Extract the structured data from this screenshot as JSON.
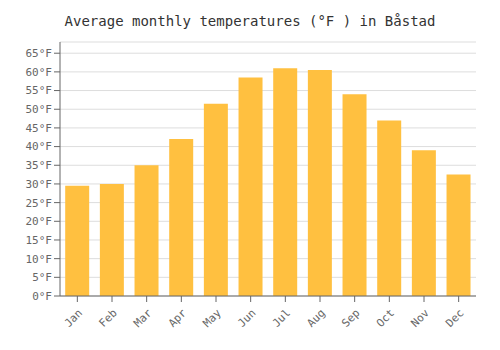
{
  "chart_data": {
    "type": "bar",
    "title": "Average monthly temperatures (°F ) in Båstad",
    "categories": [
      "Jan",
      "Feb",
      "Mar",
      "Apr",
      "May",
      "Jun",
      "Jul",
      "Aug",
      "Sep",
      "Oct",
      "Nov",
      "Dec"
    ],
    "values": [
      29.5,
      30.0,
      35.0,
      42.0,
      51.5,
      58.5,
      61.0,
      60.5,
      54.0,
      47.0,
      39.0,
      32.5
    ],
    "color": "#FFC040",
    "ylim": [
      0,
      68
    ],
    "yticks": [
      {
        "value": 0,
        "label": "0°F"
      },
      {
        "value": 5,
        "label": "5°F"
      },
      {
        "value": 10,
        "label": "10°F"
      },
      {
        "value": 15,
        "label": "15°F"
      },
      {
        "value": 20,
        "label": "20°F"
      },
      {
        "value": 25,
        "label": "25°F"
      },
      {
        "value": 30,
        "label": "30°F"
      },
      {
        "value": 35,
        "label": "35°F"
      },
      {
        "value": 40,
        "label": "40°F"
      },
      {
        "value": 45,
        "label": "45°F"
      },
      {
        "value": 50,
        "label": "50°F"
      },
      {
        "value": 55,
        "label": "55°F"
      },
      {
        "value": 60,
        "label": "60°F"
      },
      {
        "value": 65,
        "label": "65°F"
      }
    ],
    "grid": true
  }
}
